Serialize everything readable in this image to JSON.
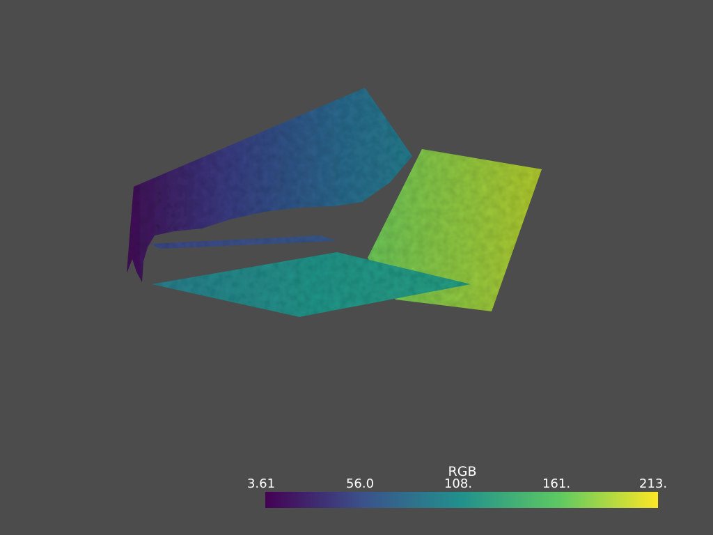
{
  "scene": {
    "background_color": "#4c4c4c",
    "colormap": "viridis",
    "surfaces": [
      {
        "name": "tilted-wall-surface",
        "value_range": [
          3.61,
          90
        ]
      },
      {
        "name": "thin-strip-surface",
        "value_range": [
          40,
          70
        ]
      },
      {
        "name": "floor-plate-surface",
        "value_range": [
          95,
          150
        ]
      },
      {
        "name": "right-panel-surface",
        "value_range": [
          150,
          213
        ]
      }
    ]
  },
  "scalar_bar": {
    "title": "RGB",
    "ticks": [
      "3.61",
      "56.0",
      "108.",
      "161.",
      "213."
    ],
    "min": 3.61,
    "max": 213,
    "colors": [
      "#440154",
      "#3b528b",
      "#21918c",
      "#5ec962",
      "#fde725"
    ]
  }
}
